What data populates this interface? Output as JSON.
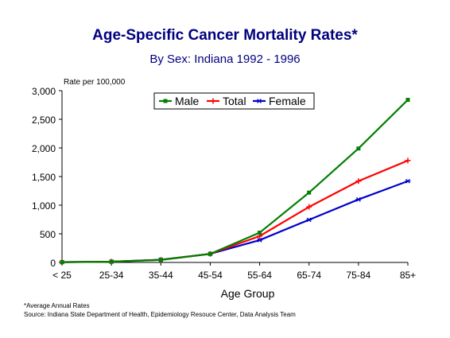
{
  "chart_data": {
    "type": "line",
    "title": "Age-Specific Cancer Mortality Rates*",
    "subtitle": "By Sex:  Indiana 1992 - 1996",
    "ylabel": "Rate per 100,000",
    "xlabel": "Age Group",
    "categories": [
      "< 25",
      "25-34",
      "35-44",
      "45-54",
      "55-64",
      "65-74",
      "75-84",
      "85+"
    ],
    "ylim": [
      0,
      3000
    ],
    "yticks": [
      "0",
      "500",
      "1,000",
      "1,500",
      "2,000",
      "2,500",
      "3,000"
    ],
    "legend_position": "top",
    "series": [
      {
        "name": "Male",
        "color": "#008000",
        "marker": "square",
        "values": [
          5,
          12,
          45,
          150,
          520,
          1220,
          1990,
          2840
        ]
      },
      {
        "name": "Total",
        "color": "#ff0000",
        "marker": "plus",
        "values": [
          5,
          15,
          45,
          150,
          460,
          970,
          1420,
          1780
        ]
      },
      {
        "name": "Female",
        "color": "#0000cc",
        "marker": "asterisk",
        "values": [
          5,
          15,
          48,
          150,
          390,
          745,
          1100,
          1420
        ]
      }
    ]
  },
  "footnotes": {
    "average": "*Average Annual Rates",
    "source": "Source:  Indiana State Department of Health, Epidemiology Resouce Center, Data Analysis Team"
  }
}
